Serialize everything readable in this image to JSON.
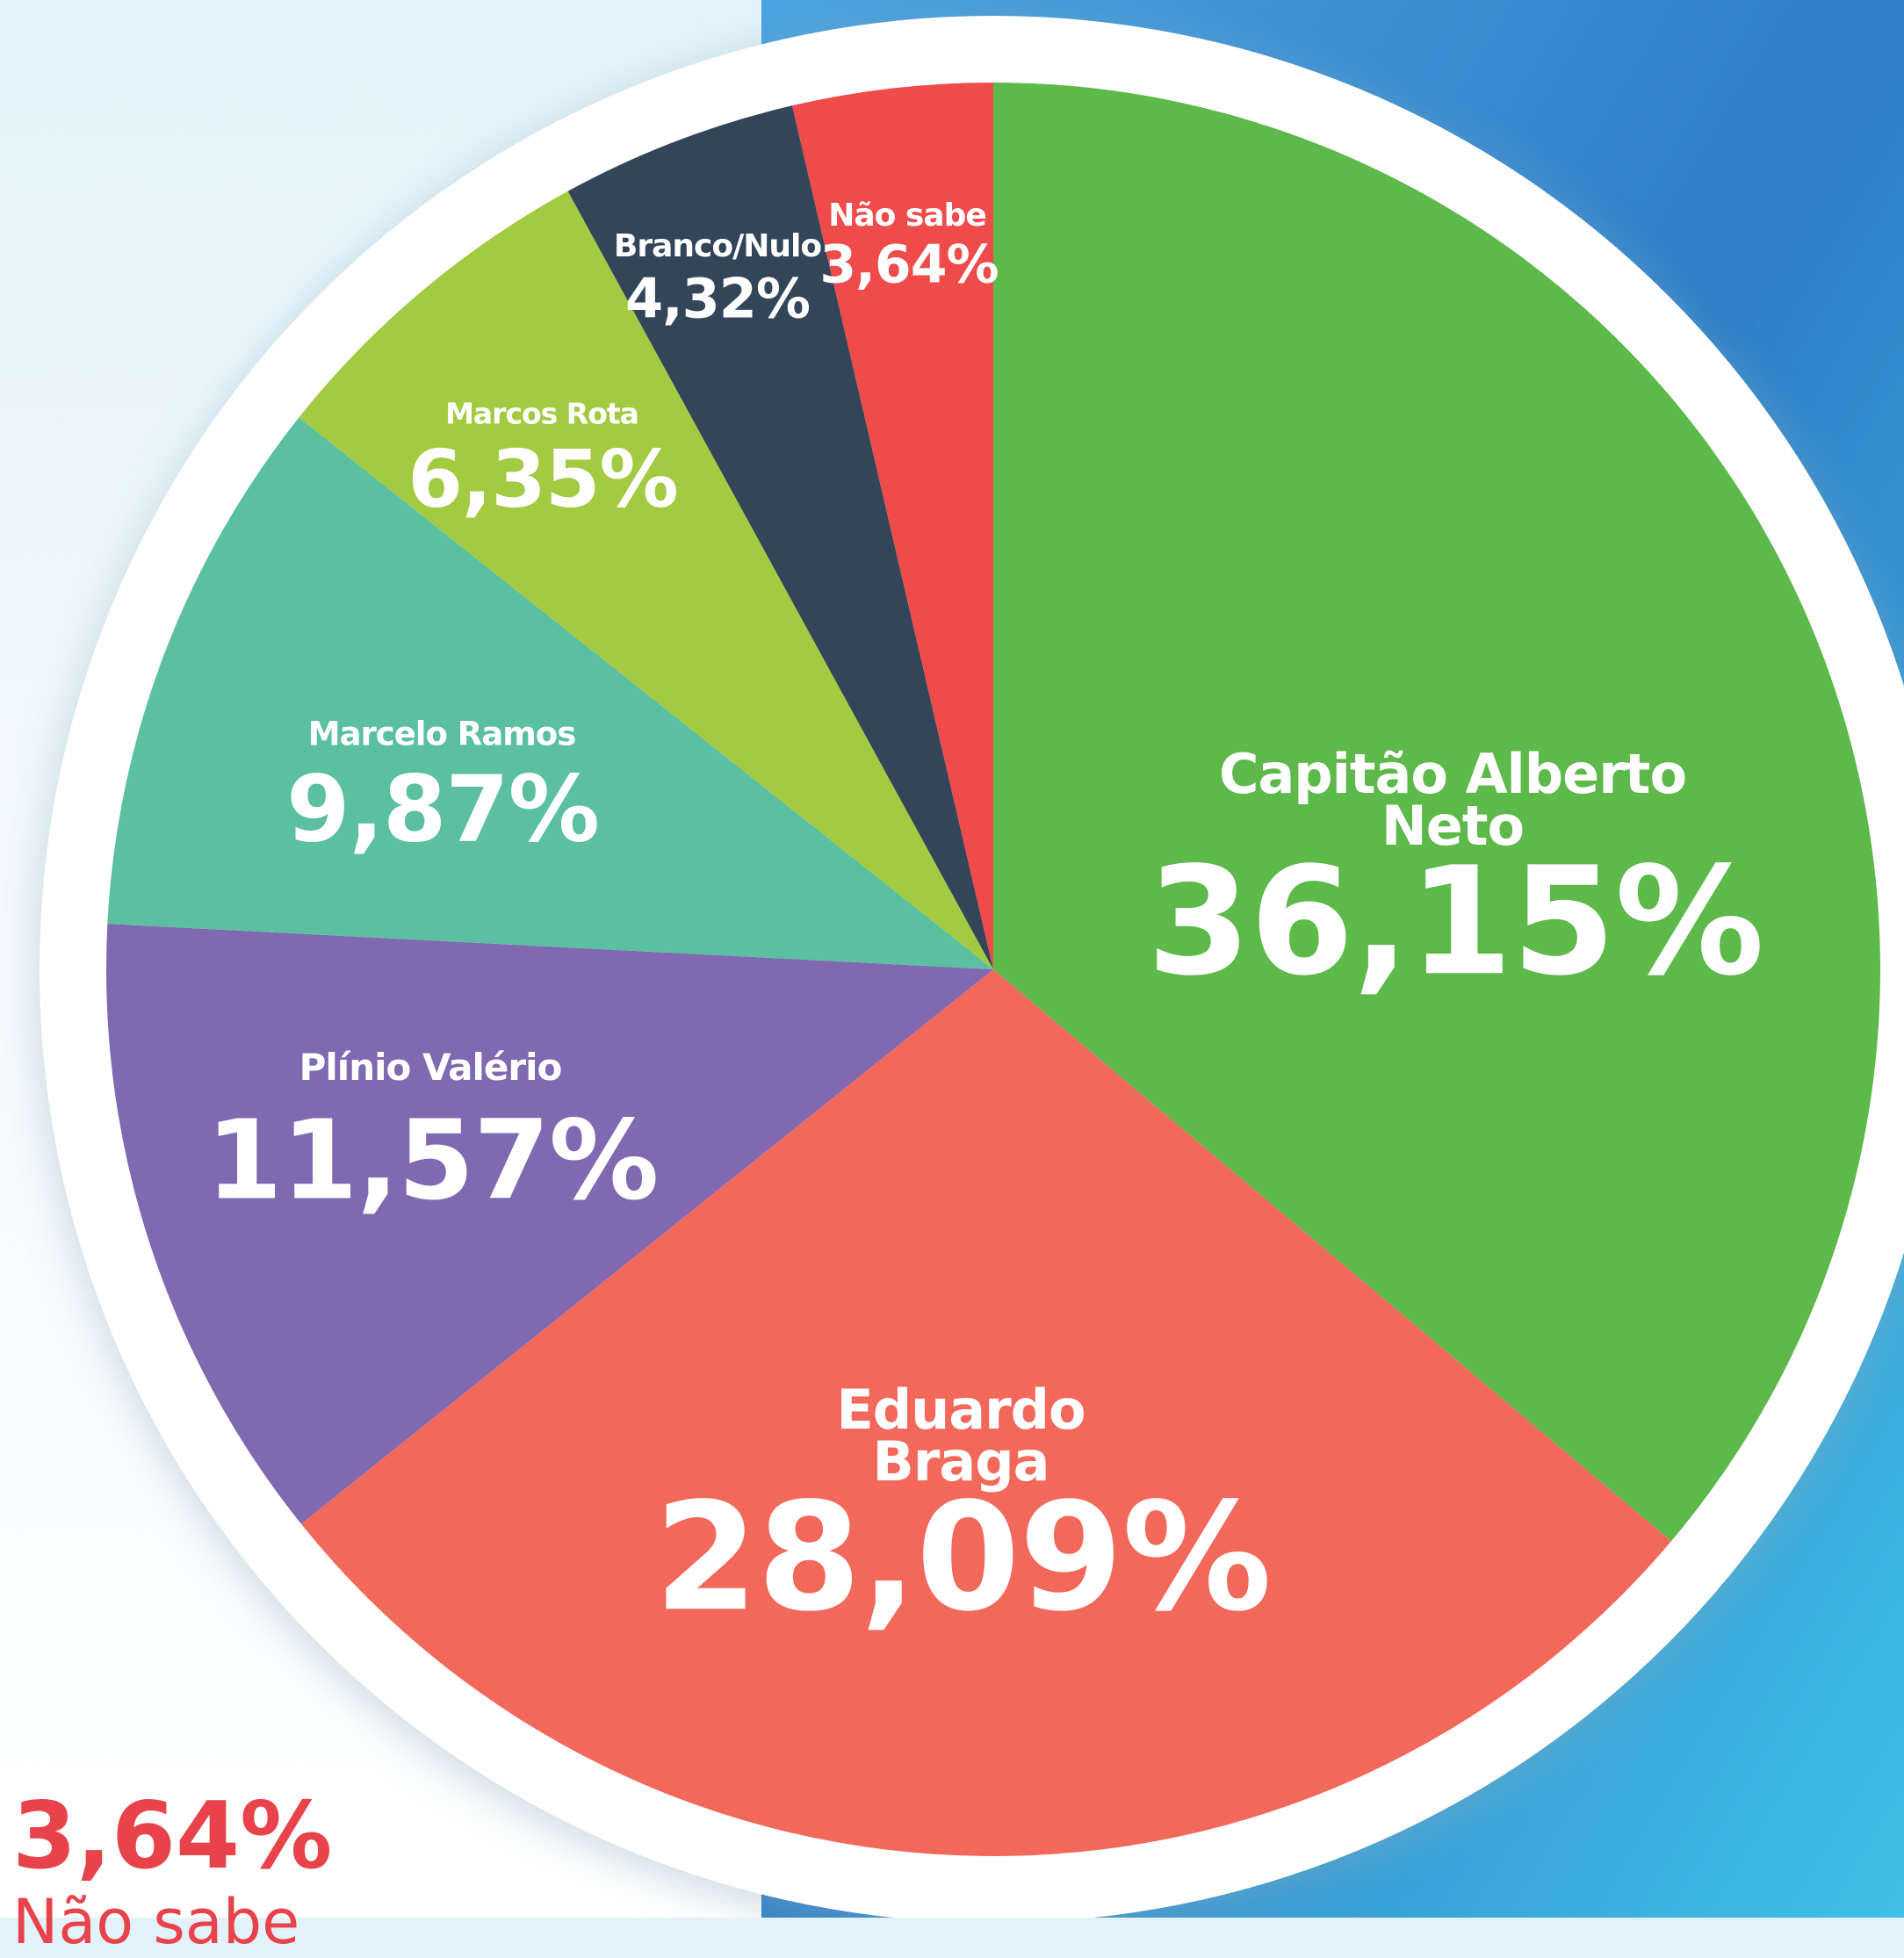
{
  "chart_data": {
    "type": "pie",
    "categories": [
      "Capitão Alberto Neto",
      "Eduardo Braga",
      "Plínio Valério",
      "Marcelo Ramos",
      "Marcos Rota",
      "Branco/Nulo",
      "Não sabe"
    ],
    "values": [
      36.15,
      28.09,
      11.57,
      9.87,
      6.35,
      4.32,
      3.64
    ],
    "value_labels": [
      "36,15%",
      "28,09%",
      "11,57%",
      "9,87%",
      "6,35%",
      "4,32%",
      "3,64%"
    ],
    "colors": [
      "#5cb94a",
      "#f2695c",
      "#8069b0",
      "#5bc0a1",
      "#a3cb42",
      "#334559",
      "#ef4b4b"
    ]
  },
  "side_note": {
    "value_label": "3,64%",
    "label": "Não sabe"
  }
}
